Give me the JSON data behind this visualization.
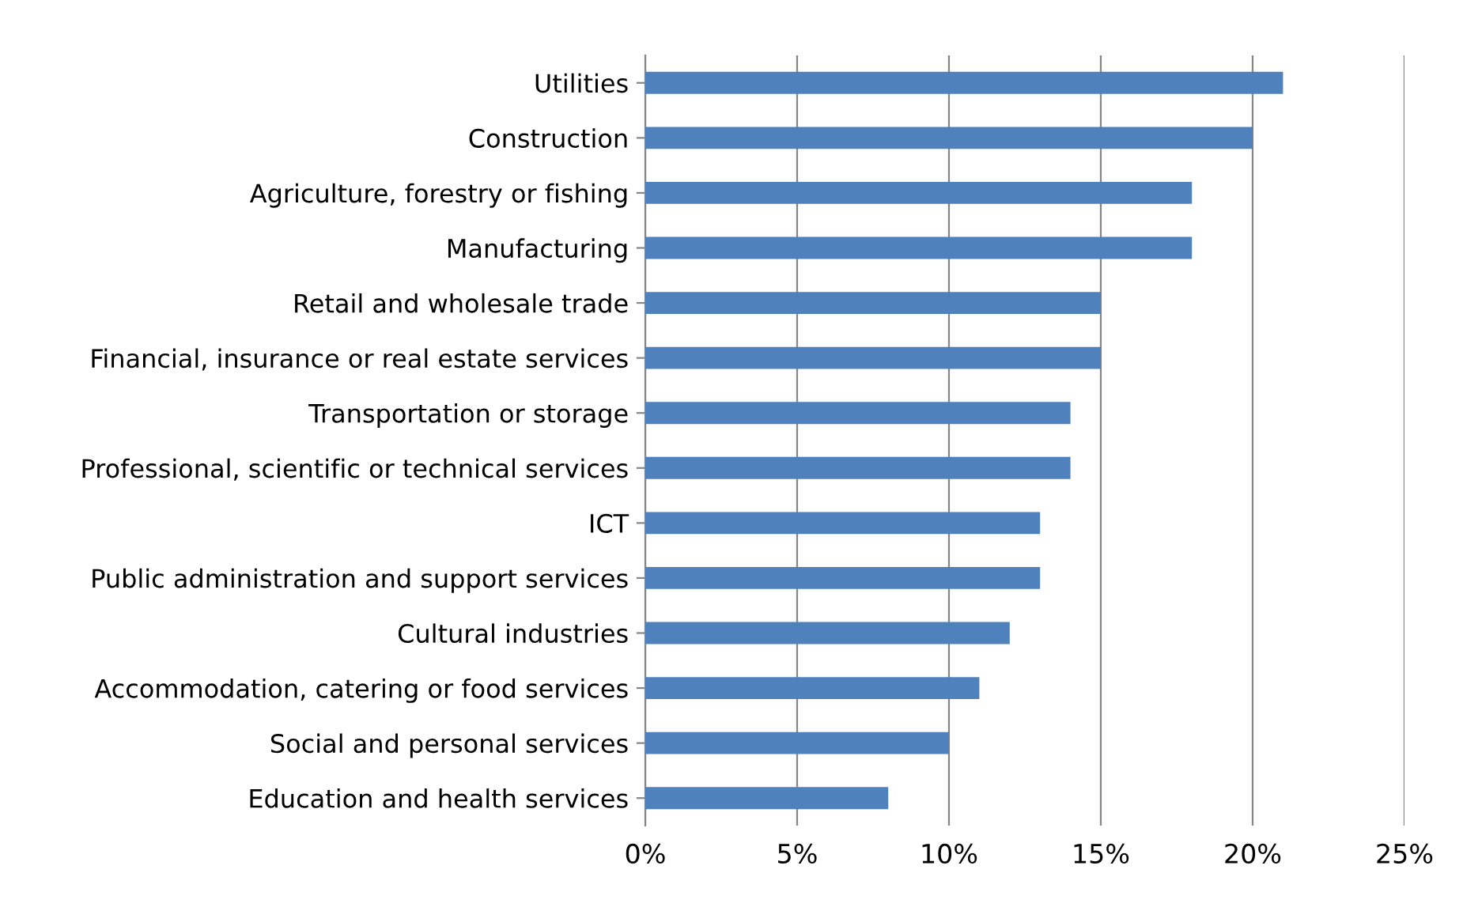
{
  "chart_data": {
    "type": "bar",
    "orientation": "horizontal",
    "categories": [
      "Utilities",
      "Construction",
      "Agriculture, forestry or fishing",
      "Manufacturing",
      "Retail and wholesale trade",
      "Financial, insurance or real estate services",
      "Transportation or storage",
      "Professional, scientific or technical services",
      "ICT",
      "Public administration and support services",
      "Cultural industries",
      "Accommodation, catering or food services",
      "Social and personal services",
      "Education and health services"
    ],
    "values": [
      21,
      20,
      18,
      18,
      15,
      15,
      14,
      14,
      13,
      13,
      12,
      11,
      10,
      8
    ],
    "color": "#4f81bd",
    "xlim": [
      0,
      25
    ],
    "xticks": [
      {
        "value": 0,
        "label": "0%"
      },
      {
        "value": 5,
        "label": "5%"
      },
      {
        "value": 10,
        "label": "10%"
      },
      {
        "value": 15,
        "label": "15%"
      },
      {
        "value": 20,
        "label": "20%"
      },
      {
        "value": 25,
        "label": "25%"
      }
    ],
    "grid": "x"
  }
}
